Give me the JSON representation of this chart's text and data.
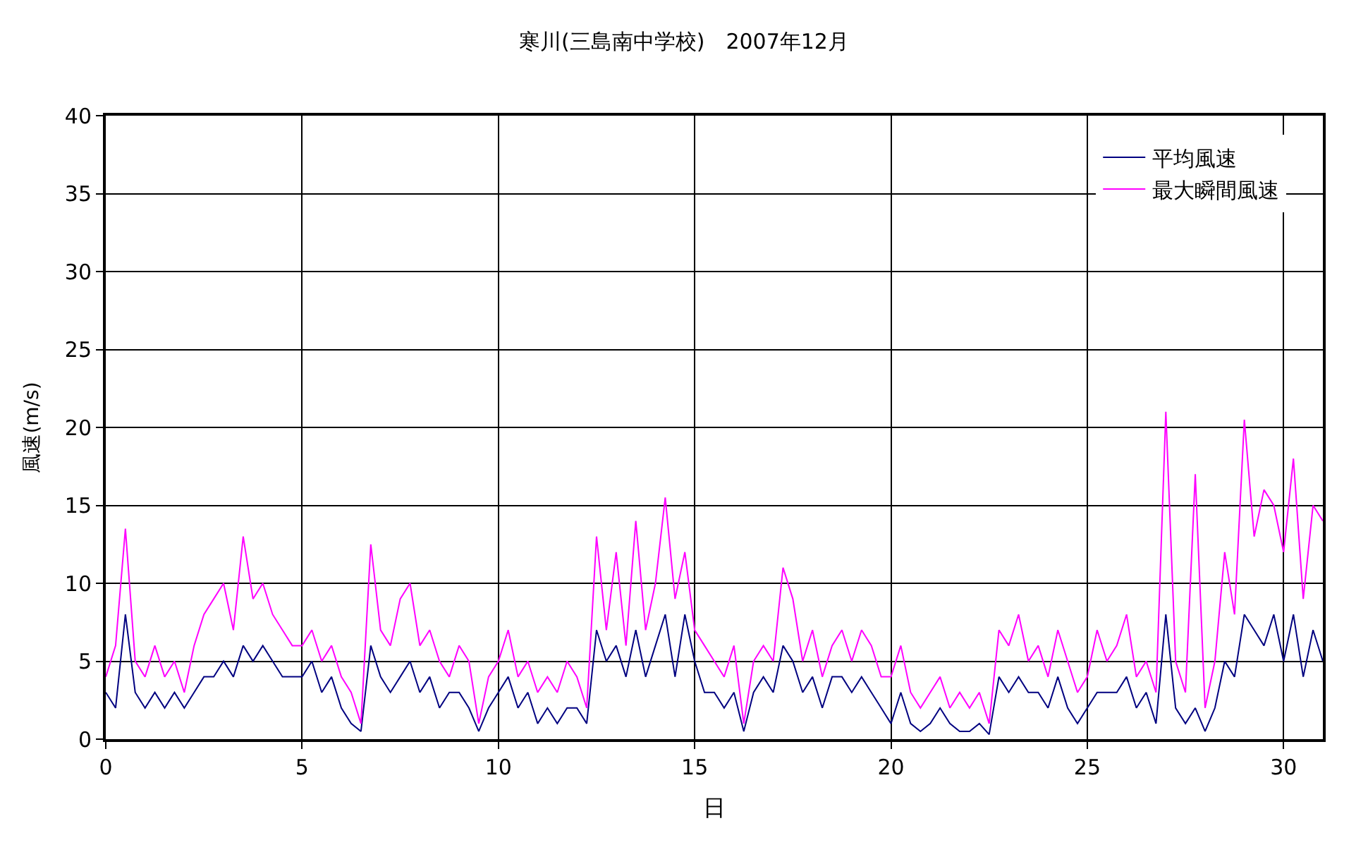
{
  "chart_data": {
    "type": "line",
    "title": "寒川(三島南中学校)　2007年12月",
    "xlabel": "日",
    "ylabel": "風速(m/s)",
    "x": [
      0,
      0.25,
      0.5,
      0.75,
      1,
      1.25,
      1.5,
      1.75,
      2,
      2.25,
      2.5,
      2.75,
      3,
      3.25,
      3.5,
      3.75,
      4,
      4.25,
      4.5,
      4.75,
      5,
      5.25,
      5.5,
      5.75,
      6,
      6.25,
      6.5,
      6.75,
      7,
      7.25,
      7.5,
      7.75,
      8,
      8.25,
      8.5,
      8.75,
      9,
      9.25,
      9.5,
      9.75,
      10,
      10.25,
      10.5,
      10.75,
      11,
      11.25,
      11.5,
      11.75,
      12,
      12.25,
      12.5,
      12.75,
      13,
      13.25,
      13.5,
      13.75,
      14,
      14.25,
      14.5,
      14.75,
      15,
      15.25,
      15.5,
      15.75,
      16,
      16.25,
      16.5,
      16.75,
      17,
      17.25,
      17.5,
      17.75,
      18,
      18.25,
      18.5,
      18.75,
      19,
      19.25,
      19.5,
      19.75,
      20,
      20.25,
      20.5,
      20.75,
      21,
      21.25,
      21.5,
      21.75,
      22,
      22.25,
      22.5,
      22.75,
      23,
      23.25,
      23.5,
      23.75,
      24,
      24.25,
      24.5,
      24.75,
      25,
      25.25,
      25.5,
      25.75,
      26,
      26.25,
      26.5,
      26.75,
      27,
      27.25,
      27.5,
      27.75,
      28,
      28.25,
      28.5,
      28.75,
      29,
      29.25,
      29.5,
      29.75,
      30,
      30.25,
      30.5,
      30.75,
      31
    ],
    "series": [
      {
        "name": "平均風速",
        "color": "#000080",
        "values": [
          3,
          2,
          8,
          3,
          2,
          3,
          2,
          3,
          2,
          3,
          4,
          4,
          5,
          4,
          6,
          5,
          6,
          5,
          4,
          4,
          4,
          5,
          3,
          4,
          2,
          1,
          0.5,
          6,
          4,
          3,
          4,
          5,
          3,
          4,
          2,
          3,
          3,
          2,
          0.5,
          2,
          3,
          4,
          2,
          3,
          1,
          2,
          1,
          2,
          2,
          1,
          7,
          5,
          6,
          4,
          7,
          4,
          6,
          8,
          4,
          8,
          5,
          3,
          3,
          2,
          3,
          0.5,
          3,
          4,
          3,
          6,
          5,
          3,
          4,
          2,
          4,
          4,
          3,
          4,
          3,
          2,
          1,
          3,
          1,
          0.5,
          1,
          2,
          1,
          0.5,
          0.5,
          1,
          0.3,
          4,
          3,
          4,
          3,
          3,
          2,
          4,
          2,
          1,
          2,
          3,
          3,
          3,
          4,
          2,
          3,
          1,
          8,
          2,
          1,
          2,
          0.5,
          2,
          5,
          4,
          8,
          7,
          6,
          8,
          5,
          8,
          4,
          7,
          5
        ]
      },
      {
        "name": "最大瞬間風速",
        "color": "#ff00ff",
        "values": [
          4,
          6,
          13.5,
          5,
          4,
          6,
          4,
          5,
          3,
          6,
          8,
          9,
          10,
          7,
          13,
          9,
          10,
          8,
          7,
          6,
          6,
          7,
          5,
          6,
          4,
          3,
          1,
          12.5,
          7,
          6,
          9,
          10,
          6,
          7,
          5,
          4,
          6,
          5,
          1,
          4,
          5,
          7,
          4,
          5,
          3,
          4,
          3,
          5,
          4,
          2,
          13,
          7,
          12,
          6,
          14,
          7,
          10,
          15.5,
          9,
          12,
          7,
          6,
          5,
          4,
          6,
          1,
          5,
          6,
          5,
          11,
          9,
          5,
          7,
          4,
          6,
          7,
          5,
          7,
          6,
          4,
          4,
          6,
          3,
          2,
          3,
          4,
          2,
          3,
          2,
          3,
          1,
          7,
          6,
          8,
          5,
          6,
          4,
          7,
          5,
          3,
          4,
          7,
          5,
          6,
          8,
          4,
          5,
          3,
          21,
          5,
          3,
          17,
          2,
          5,
          12,
          8,
          20.5,
          13,
          16,
          15,
          12,
          18,
          9,
          15,
          14
        ]
      }
    ],
    "xlim": [
      0,
      31
    ],
    "xticks": [
      0,
      5,
      10,
      15,
      20,
      25,
      30
    ],
    "ylim": [
      0,
      40
    ],
    "yticks": [
      0,
      5,
      10,
      15,
      20,
      25,
      30,
      35,
      40
    ],
    "grid": true,
    "legend": "top right",
    "marker": "none",
    "line_style": "solid"
  }
}
